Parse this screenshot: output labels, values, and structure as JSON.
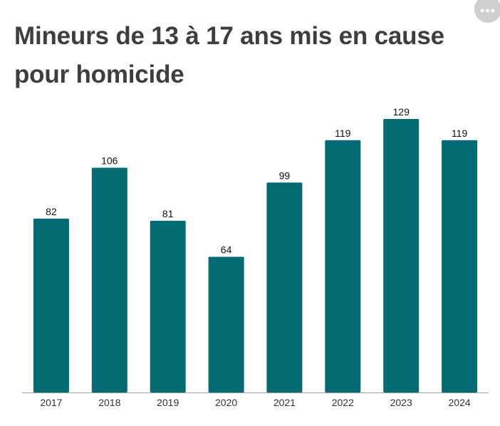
{
  "title": "Mineurs de 13 à 17 ans mis en cause pour homicide",
  "menu": {
    "icon": "more-horizontal-icon",
    "glyph": "•••"
  },
  "colors": {
    "bar": "#046b73",
    "axis": "#9e9e9e",
    "label": "#111111",
    "tick": "#333333",
    "title": "#3e3e3e"
  },
  "chart_data": {
    "type": "bar",
    "title": "Mineurs de 13 à 17 ans mis en cause pour homicide",
    "categories": [
      "2017",
      "2018",
      "2019",
      "2020",
      "2021",
      "2022",
      "2023",
      "2024"
    ],
    "values": [
      82,
      106,
      81,
      64,
      99,
      119,
      129,
      119
    ],
    "xlabel": "",
    "ylabel": "",
    "ylim": [
      0,
      129
    ],
    "grid": false,
    "data_labels": true,
    "legend": "none"
  }
}
